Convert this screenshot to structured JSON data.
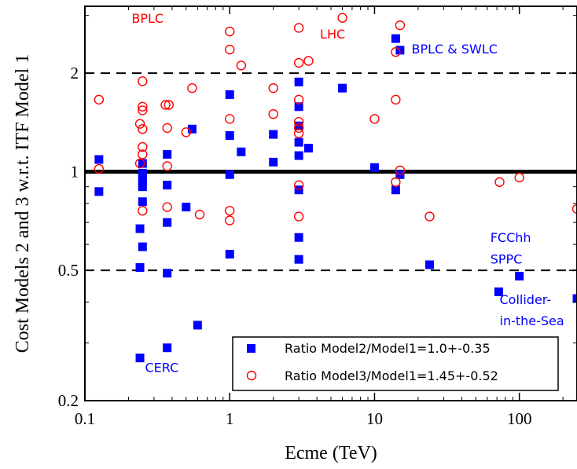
{
  "chart_data": {
    "type": "scatter",
    "title": "",
    "xlabel": "Ecme (TeV)",
    "ylabel": "Cost Models 2 and 3 w.r.t. ITF Model 1",
    "xscale": "log",
    "yscale": "log",
    "xlim": [
      0.1,
      250
    ],
    "ylim": [
      0.2,
      3.2
    ],
    "xticks": [
      {
        "value": 0.1,
        "label": "0.1"
      },
      {
        "value": 1,
        "label": "1"
      },
      {
        "value": 10,
        "label": "10"
      },
      {
        "value": 100,
        "label": "100"
      }
    ],
    "yticks": [
      {
        "value": 0.2,
        "label": "0.2"
      },
      {
        "value": 0.5,
        "label": "0.5"
      },
      {
        "value": 1,
        "label": "1"
      },
      {
        "value": 2,
        "label": "2"
      }
    ],
    "reference_lines": [
      {
        "y": 1.0,
        "style": "solid"
      },
      {
        "y": 2.0,
        "style": "dashed"
      },
      {
        "y": 0.5,
        "style": "dashed"
      }
    ],
    "legend_position": "bottom-right",
    "series": [
      {
        "name": "Ratio Model2/Model1=1.0+-0.35",
        "marker": "filled-square",
        "color": "#0000ff",
        "points": [
          [
            0.125,
            1.09
          ],
          [
            0.125,
            0.87
          ],
          [
            0.24,
            0.67
          ],
          [
            0.24,
            0.51
          ],
          [
            0.24,
            0.27
          ],
          [
            0.25,
            1.06
          ],
          [
            0.25,
            0.99
          ],
          [
            0.25,
            0.96
          ],
          [
            0.25,
            0.93
          ],
          [
            0.25,
            0.9
          ],
          [
            0.25,
            0.81
          ],
          [
            0.25,
            0.59
          ],
          [
            0.37,
            1.13
          ],
          [
            0.37,
            0.91
          ],
          [
            0.37,
            0.7
          ],
          [
            0.37,
            0.49
          ],
          [
            0.37,
            0.29
          ],
          [
            0.5,
            0.78
          ],
          [
            0.55,
            1.35
          ],
          [
            0.6,
            0.34
          ],
          [
            1.0,
            1.72
          ],
          [
            1.0,
            1.29
          ],
          [
            1.0,
            0.98
          ],
          [
            1.0,
            0.56
          ],
          [
            1.2,
            1.15
          ],
          [
            2.0,
            1.3
          ],
          [
            2.0,
            1.07
          ],
          [
            3.0,
            1.88
          ],
          [
            3.0,
            1.58
          ],
          [
            3.0,
            1.38
          ],
          [
            3.0,
            1.23
          ],
          [
            3.0,
            1.12
          ],
          [
            3.0,
            0.88
          ],
          [
            3.0,
            0.63
          ],
          [
            3.0,
            0.54
          ],
          [
            3.5,
            1.18
          ],
          [
            6.0,
            1.8
          ],
          [
            10.0,
            1.03
          ],
          [
            14.0,
            2.55
          ],
          [
            14.0,
            0.88
          ],
          [
            15.0,
            2.35
          ],
          [
            15.0,
            0.98
          ],
          [
            24.0,
            0.52
          ],
          [
            72.0,
            0.43
          ],
          [
            100.0,
            0.48
          ],
          [
            250.0,
            0.41
          ]
        ]
      },
      {
        "name": "Ratio Model3/Model1=1.45+-0.52",
        "marker": "open-circle",
        "color": "#ff0000",
        "points": [
          [
            0.125,
            1.66
          ],
          [
            0.125,
            1.02
          ],
          [
            0.24,
            1.4
          ],
          [
            0.24,
            1.06
          ],
          [
            0.25,
            1.89
          ],
          [
            0.25,
            1.58
          ],
          [
            0.25,
            1.54
          ],
          [
            0.25,
            1.35
          ],
          [
            0.25,
            1.19
          ],
          [
            0.25,
            1.13
          ],
          [
            0.25,
            0.76
          ],
          [
            0.36,
            1.6
          ],
          [
            0.37,
            1.36
          ],
          [
            0.37,
            1.04
          ],
          [
            0.37,
            0.78
          ],
          [
            0.38,
            1.6
          ],
          [
            0.5,
            1.32
          ],
          [
            0.55,
            1.8
          ],
          [
            0.62,
            0.74
          ],
          [
            1.0,
            2.68
          ],
          [
            1.0,
            2.36
          ],
          [
            1.0,
            1.45
          ],
          [
            1.0,
            0.76
          ],
          [
            1.0,
            0.71
          ],
          [
            1.2,
            2.11
          ],
          [
            2.0,
            1.8
          ],
          [
            2.0,
            1.5
          ],
          [
            3.0,
            2.75
          ],
          [
            3.0,
            2.15
          ],
          [
            3.0,
            1.66
          ],
          [
            3.0,
            1.42
          ],
          [
            3.0,
            1.36
          ],
          [
            3.0,
            1.31
          ],
          [
            3.0,
            0.91
          ],
          [
            3.0,
            0.73
          ],
          [
            3.5,
            2.18
          ],
          [
            6.0,
            2.95
          ],
          [
            10.0,
            1.45
          ],
          [
            14.0,
            2.32
          ],
          [
            14.0,
            1.66
          ],
          [
            14.0,
            0.93
          ],
          [
            15.0,
            2.8
          ],
          [
            15.0,
            1.01
          ],
          [
            24.0,
            0.73
          ],
          [
            73.0,
            0.93
          ],
          [
            100.0,
            0.96
          ],
          [
            250.0,
            0.77
          ]
        ]
      }
    ],
    "annotations": [
      {
        "text": "BPLC",
        "x": 0.21,
        "y": 2.85,
        "color": "#ff0000"
      },
      {
        "text": "LHC",
        "x": 4.2,
        "y": 2.55,
        "color": "#ff0000"
      },
      {
        "text": "BPLC & SWLC",
        "x": 18.0,
        "y": 2.3,
        "color": "#0000ff"
      },
      {
        "text": "FCChh",
        "x": 63.0,
        "y": 0.61,
        "color": "#0000ff"
      },
      {
        "text": "SPPC",
        "x": 63.0,
        "y": 0.525,
        "color": "#0000ff"
      },
      {
        "text": "Collider-",
        "x": 73.0,
        "y": 0.395,
        "color": "#0000ff"
      },
      {
        "text": "in-the-Sea",
        "x": 73.0,
        "y": 0.34,
        "color": "#0000ff"
      },
      {
        "text": "CERC",
        "x": 0.26,
        "y": 0.245,
        "color": "#0000ff"
      }
    ]
  }
}
